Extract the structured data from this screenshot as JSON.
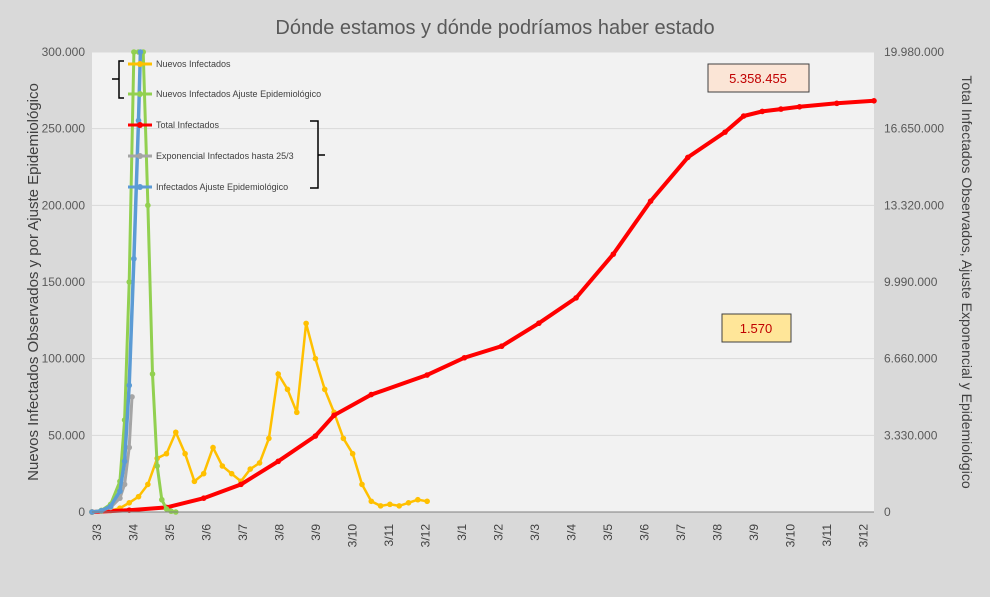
{
  "chart_data": {
    "type": "line",
    "title": "Dónde estamos y dónde podríamos haber estado",
    "ylabel": "Nuevos Infectados Observados y por Ajuste Epidemiológico",
    "y2label": "Total Infectados Observados, Ajuste Exponencial y Epidemiológico",
    "x_ticks": [
      "3/3",
      "3/4",
      "3/5",
      "3/6",
      "3/7",
      "3/8",
      "3/9",
      "3/10",
      "3/11",
      "3/12",
      "3/1",
      "3/2",
      "3/3",
      "3/4",
      "3/5",
      "3/6",
      "3/7",
      "3/8",
      "3/9",
      "3/10",
      "3/11",
      "3/12"
    ],
    "ylim": [
      0,
      300000
    ],
    "y_ticks": [
      "0",
      "50.000",
      "100.000",
      "150.000",
      "200.000",
      "250.000",
      "300.000"
    ],
    "y2lim": [
      0,
      19980000
    ],
    "y2_ticks": [
      "0",
      "3.330.000",
      "6.660.000",
      "9.990.000",
      "13.320.000",
      "16.650.000",
      "19.980.000"
    ],
    "grid": true,
    "legend_position": "top-left",
    "legend": [
      {
        "name": "Nuevos Infectados",
        "color": "#ffc000",
        "axis": "left"
      },
      {
        "name": "Nuevos Infectados Ajuste Epidemiológico",
        "color": "#92d050",
        "axis": "left"
      },
      {
        "name": "Total Infectados",
        "color": "#ff0000",
        "axis": "right"
      },
      {
        "name": "Exponencial Infectados hasta 25/3",
        "color": "#a5a5a5",
        "axis": "right"
      },
      {
        "name": "Infectados Ajuste Epidemiológico",
        "color": "#5b9bd5",
        "axis": "right"
      }
    ],
    "annotations": {
      "total_label": "5.358.455",
      "new_label": "1.570"
    },
    "series_points": {
      "nuevos_infectados": [
        [
          0,
          0
        ],
        [
          1,
          500
        ],
        [
          2,
          1000
        ],
        [
          3,
          2500
        ],
        [
          4,
          6000
        ],
        [
          5,
          10000
        ],
        [
          6,
          18000
        ],
        [
          7,
          35000
        ],
        [
          8,
          38000
        ],
        [
          9,
          52000
        ],
        [
          10,
          38000
        ],
        [
          11,
          20000
        ],
        [
          12,
          25000
        ],
        [
          13,
          42000
        ],
        [
          14,
          30000
        ],
        [
          15,
          25000
        ],
        [
          16,
          20000
        ],
        [
          17,
          28000
        ],
        [
          18,
          32000
        ],
        [
          19,
          48000
        ],
        [
          20,
          90000
        ],
        [
          21,
          80000
        ],
        [
          22,
          65000
        ],
        [
          23,
          123000
        ],
        [
          24,
          100000
        ],
        [
          25,
          80000
        ],
        [
          26,
          65000
        ],
        [
          27,
          48000
        ],
        [
          28,
          38000
        ],
        [
          29,
          18000
        ],
        [
          30,
          7000
        ],
        [
          31,
          4000
        ],
        [
          32,
          5000
        ],
        [
          33,
          4000
        ],
        [
          34,
          6000
        ],
        [
          35,
          8000
        ],
        [
          36,
          7000
        ]
      ],
      "nuevos_ajuste_epidemiologico": [
        [
          0,
          0
        ],
        [
          1,
          1000
        ],
        [
          2,
          5000
        ],
        [
          3,
          20000
        ],
        [
          3.5,
          60000
        ],
        [
          4,
          150000
        ],
        [
          4.5,
          300000
        ],
        [
          5,
          300000
        ],
        [
          5.5,
          300000
        ],
        [
          6,
          200000
        ],
        [
          6.5,
          90000
        ],
        [
          7,
          30000
        ],
        [
          7.5,
          8000
        ],
        [
          8,
          2000
        ],
        [
          8.5,
          500
        ],
        [
          9,
          0
        ]
      ],
      "total_infectados": [
        [
          0,
          0
        ],
        [
          4,
          80000
        ],
        [
          8,
          200000
        ],
        [
          12,
          600000
        ],
        [
          16,
          1200000
        ],
        [
          20,
          2200000
        ],
        [
          24,
          3300000
        ],
        [
          26,
          4200000
        ],
        [
          30,
          5100000
        ],
        [
          36,
          5950000
        ],
        [
          40,
          6700000
        ],
        [
          44,
          7200000
        ],
        [
          48,
          8200000
        ],
        [
          52,
          9300000
        ],
        [
          56,
          11200000
        ],
        [
          60,
          13500000
        ],
        [
          64,
          15400000
        ],
        [
          68,
          16500000
        ],
        [
          70,
          17200000
        ],
        [
          72,
          17400000
        ],
        [
          74,
          17500000
        ],
        [
          76,
          17600000
        ],
        [
          80,
          17750000
        ],
        [
          84,
          17860000
        ]
      ],
      "exponencial_hasta_25_3": [
        [
          0,
          0
        ],
        [
          1,
          60000
        ],
        [
          2,
          200000
        ],
        [
          3,
          600000
        ],
        [
          3.5,
          1200000
        ],
        [
          4,
          2800000
        ],
        [
          4.3,
          5000000
        ]
      ],
      "infectados_ajuste_epidemiologico": [
        [
          0,
          0
        ],
        [
          1,
          50000
        ],
        [
          2,
          250000
        ],
        [
          3,
          900000
        ],
        [
          3.5,
          2200000
        ],
        [
          4,
          5500000
        ],
        [
          4.5,
          11000000
        ],
        [
          5,
          17000000
        ],
        [
          5.2,
          19980000
        ]
      ]
    }
  }
}
